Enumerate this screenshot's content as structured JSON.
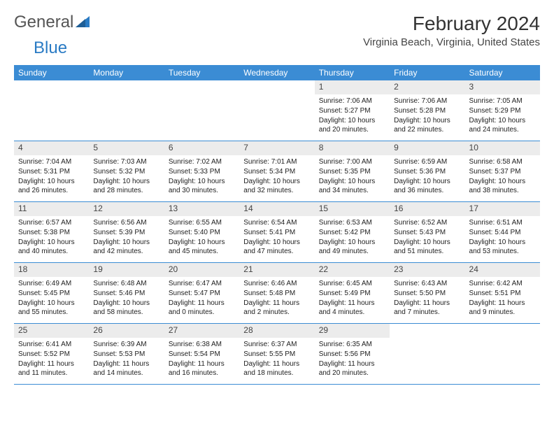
{
  "brand": {
    "word1": "General",
    "word2": "Blue"
  },
  "title": "February 2024",
  "location": "Virginia Beach, Virginia, United States",
  "colors": {
    "header_bg": "#3b8cd4",
    "header_text": "#ffffff",
    "daynum_bg": "#ececec",
    "rule": "#3b8cd4",
    "logo_blue": "#2a7bc4"
  },
  "day_names": [
    "Sunday",
    "Monday",
    "Tuesday",
    "Wednesday",
    "Thursday",
    "Friday",
    "Saturday"
  ],
  "weeks": [
    [
      {
        "empty": true
      },
      {
        "empty": true
      },
      {
        "empty": true
      },
      {
        "empty": true
      },
      {
        "n": "1",
        "sunrise": "Sunrise: 7:06 AM",
        "sunset": "Sunset: 5:27 PM",
        "daylight": "Daylight: 10 hours and 20 minutes."
      },
      {
        "n": "2",
        "sunrise": "Sunrise: 7:06 AM",
        "sunset": "Sunset: 5:28 PM",
        "daylight": "Daylight: 10 hours and 22 minutes."
      },
      {
        "n": "3",
        "sunrise": "Sunrise: 7:05 AM",
        "sunset": "Sunset: 5:29 PM",
        "daylight": "Daylight: 10 hours and 24 minutes."
      }
    ],
    [
      {
        "n": "4",
        "sunrise": "Sunrise: 7:04 AM",
        "sunset": "Sunset: 5:31 PM",
        "daylight": "Daylight: 10 hours and 26 minutes."
      },
      {
        "n": "5",
        "sunrise": "Sunrise: 7:03 AM",
        "sunset": "Sunset: 5:32 PM",
        "daylight": "Daylight: 10 hours and 28 minutes."
      },
      {
        "n": "6",
        "sunrise": "Sunrise: 7:02 AM",
        "sunset": "Sunset: 5:33 PM",
        "daylight": "Daylight: 10 hours and 30 minutes."
      },
      {
        "n": "7",
        "sunrise": "Sunrise: 7:01 AM",
        "sunset": "Sunset: 5:34 PM",
        "daylight": "Daylight: 10 hours and 32 minutes."
      },
      {
        "n": "8",
        "sunrise": "Sunrise: 7:00 AM",
        "sunset": "Sunset: 5:35 PM",
        "daylight": "Daylight: 10 hours and 34 minutes."
      },
      {
        "n": "9",
        "sunrise": "Sunrise: 6:59 AM",
        "sunset": "Sunset: 5:36 PM",
        "daylight": "Daylight: 10 hours and 36 minutes."
      },
      {
        "n": "10",
        "sunrise": "Sunrise: 6:58 AM",
        "sunset": "Sunset: 5:37 PM",
        "daylight": "Daylight: 10 hours and 38 minutes."
      }
    ],
    [
      {
        "n": "11",
        "sunrise": "Sunrise: 6:57 AM",
        "sunset": "Sunset: 5:38 PM",
        "daylight": "Daylight: 10 hours and 40 minutes."
      },
      {
        "n": "12",
        "sunrise": "Sunrise: 6:56 AM",
        "sunset": "Sunset: 5:39 PM",
        "daylight": "Daylight: 10 hours and 42 minutes."
      },
      {
        "n": "13",
        "sunrise": "Sunrise: 6:55 AM",
        "sunset": "Sunset: 5:40 PM",
        "daylight": "Daylight: 10 hours and 45 minutes."
      },
      {
        "n": "14",
        "sunrise": "Sunrise: 6:54 AM",
        "sunset": "Sunset: 5:41 PM",
        "daylight": "Daylight: 10 hours and 47 minutes."
      },
      {
        "n": "15",
        "sunrise": "Sunrise: 6:53 AM",
        "sunset": "Sunset: 5:42 PM",
        "daylight": "Daylight: 10 hours and 49 minutes."
      },
      {
        "n": "16",
        "sunrise": "Sunrise: 6:52 AM",
        "sunset": "Sunset: 5:43 PM",
        "daylight": "Daylight: 10 hours and 51 minutes."
      },
      {
        "n": "17",
        "sunrise": "Sunrise: 6:51 AM",
        "sunset": "Sunset: 5:44 PM",
        "daylight": "Daylight: 10 hours and 53 minutes."
      }
    ],
    [
      {
        "n": "18",
        "sunrise": "Sunrise: 6:49 AM",
        "sunset": "Sunset: 5:45 PM",
        "daylight": "Daylight: 10 hours and 55 minutes."
      },
      {
        "n": "19",
        "sunrise": "Sunrise: 6:48 AM",
        "sunset": "Sunset: 5:46 PM",
        "daylight": "Daylight: 10 hours and 58 minutes."
      },
      {
        "n": "20",
        "sunrise": "Sunrise: 6:47 AM",
        "sunset": "Sunset: 5:47 PM",
        "daylight": "Daylight: 11 hours and 0 minutes."
      },
      {
        "n": "21",
        "sunrise": "Sunrise: 6:46 AM",
        "sunset": "Sunset: 5:48 PM",
        "daylight": "Daylight: 11 hours and 2 minutes."
      },
      {
        "n": "22",
        "sunrise": "Sunrise: 6:45 AM",
        "sunset": "Sunset: 5:49 PM",
        "daylight": "Daylight: 11 hours and 4 minutes."
      },
      {
        "n": "23",
        "sunrise": "Sunrise: 6:43 AM",
        "sunset": "Sunset: 5:50 PM",
        "daylight": "Daylight: 11 hours and 7 minutes."
      },
      {
        "n": "24",
        "sunrise": "Sunrise: 6:42 AM",
        "sunset": "Sunset: 5:51 PM",
        "daylight": "Daylight: 11 hours and 9 minutes."
      }
    ],
    [
      {
        "n": "25",
        "sunrise": "Sunrise: 6:41 AM",
        "sunset": "Sunset: 5:52 PM",
        "daylight": "Daylight: 11 hours and 11 minutes."
      },
      {
        "n": "26",
        "sunrise": "Sunrise: 6:39 AM",
        "sunset": "Sunset: 5:53 PM",
        "daylight": "Daylight: 11 hours and 14 minutes."
      },
      {
        "n": "27",
        "sunrise": "Sunrise: 6:38 AM",
        "sunset": "Sunset: 5:54 PM",
        "daylight": "Daylight: 11 hours and 16 minutes."
      },
      {
        "n": "28",
        "sunrise": "Sunrise: 6:37 AM",
        "sunset": "Sunset: 5:55 PM",
        "daylight": "Daylight: 11 hours and 18 minutes."
      },
      {
        "n": "29",
        "sunrise": "Sunrise: 6:35 AM",
        "sunset": "Sunset: 5:56 PM",
        "daylight": "Daylight: 11 hours and 20 minutes."
      },
      {
        "empty": true
      },
      {
        "empty": true
      }
    ]
  ]
}
